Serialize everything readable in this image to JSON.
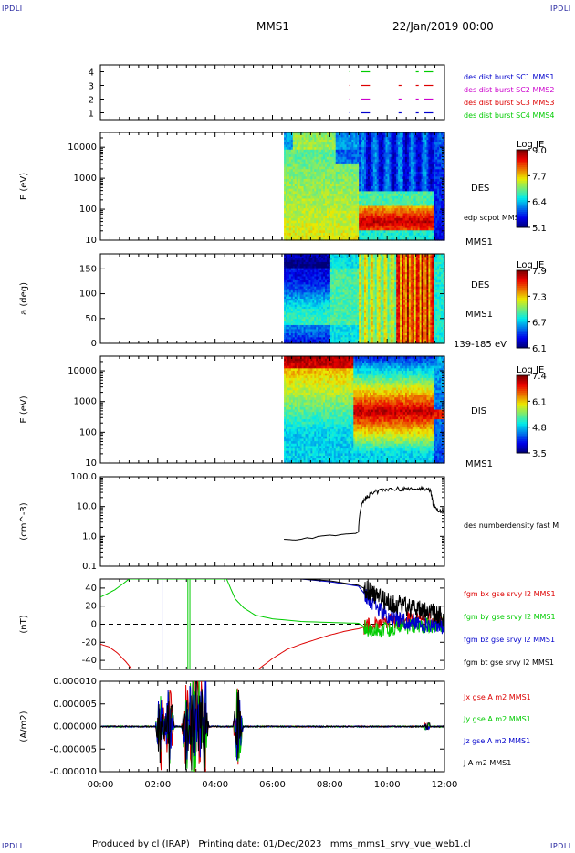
{
  "header": {
    "corner_label": "IPDLI",
    "spacecraft": "MMS1",
    "date": "22/Jan/2019 00:00"
  },
  "footer": {
    "text": "Produced by cl (IRAP)   Printing date: 01/Dec/2023   mms_mms1_srvy_vue_web1.cl"
  },
  "x_axis": {
    "ticks": [
      "00:00",
      "02:00",
      "04:00",
      "06:00",
      "08:00",
      "10:00",
      "12:00"
    ],
    "range_hours": [
      0,
      12
    ]
  },
  "colors": {
    "sc1": "#0000cc",
    "sc2": "#cc00cc",
    "sc3": "#dd0000",
    "sc4": "#00cc00",
    "bx": "#dd0000",
    "by": "#00cc00",
    "bz": "#0000cc",
    "bt": "#000000"
  },
  "chart_data": [
    {
      "id": "availability",
      "type": "scatter",
      "ylabel": "",
      "yticks": [
        "1",
        "2",
        "3",
        "4"
      ],
      "ylim": [
        0.5,
        4.5
      ],
      "legend_placement": "right",
      "series": [
        {
          "name": "des dist burst SC1 MMS1",
          "color": "#0000cc",
          "y": 1,
          "segments": [
            [
              9.1,
              9.4
            ],
            [
              10.4,
              10.5
            ],
            [
              11.0,
              11.1
            ],
            [
              11.3,
              11.6
            ]
          ]
        },
        {
          "name": "des dist burst SC2 MMS2",
          "color": "#cc00cc",
          "y": 2,
          "segments": [
            [
              9.1,
              9.4
            ],
            [
              10.4,
              10.5
            ],
            [
              11.0,
              11.1
            ],
            [
              11.3,
              11.6
            ]
          ]
        },
        {
          "name": "des dist burst SC3 MMS3",
          "color": "#dd0000",
          "y": 3,
          "segments": [
            [
              9.1,
              9.4
            ],
            [
              10.4,
              10.5
            ],
            [
              11.0,
              11.1
            ],
            [
              11.3,
              11.6
            ]
          ]
        },
        {
          "name": "des dist burst SC4 MMS4",
          "color": "#00cc00",
          "y": 4,
          "segments": [
            [
              9.1,
              9.4
            ],
            [
              11.0,
              11.1
            ],
            [
              11.3,
              11.6
            ]
          ]
        }
      ]
    },
    {
      "id": "des-energy",
      "type": "heatmap",
      "ylabel": "E (eV)",
      "yscale": "log",
      "ylim": [
        10,
        30000
      ],
      "yticks": [
        "10",
        "100",
        "1000",
        "10000"
      ],
      "labels": [
        "DES",
        "edp scpot MMS1",
        "MMS1"
      ],
      "colorbar": {
        "title": "Log JE",
        "ticks": [
          "5.1",
          "6.4",
          "7.7",
          "9.0"
        ],
        "range": [
          5.1,
          9.0
        ]
      },
      "data_start_hour": 6.4
    },
    {
      "id": "des-pitch",
      "type": "heatmap",
      "ylabel": "a (deg)",
      "ylim": [
        0,
        180
      ],
      "yticks": [
        "0",
        "50",
        "100",
        "150"
      ],
      "labels": [
        "DES",
        "MMS1",
        "139-185 eV"
      ],
      "colorbar": {
        "title": "Log JE",
        "ticks": [
          "6.1",
          "6.7",
          "7.3",
          "7.9"
        ],
        "range": [
          6.1,
          7.9
        ]
      },
      "data_start_hour": 6.4
    },
    {
      "id": "dis-energy",
      "type": "heatmap",
      "ylabel": "E (eV)",
      "yscale": "log",
      "ylim": [
        10,
        30000
      ],
      "yticks": [
        "10",
        "100",
        "1000",
        "10000"
      ],
      "labels": [
        "DIS",
        "MMS1"
      ],
      "colorbar": {
        "title": "Log JE",
        "ticks": [
          "3.5",
          "4.8",
          "6.1",
          "7.4"
        ],
        "range": [
          3.5,
          7.4
        ]
      },
      "data_start_hour": 6.4
    },
    {
      "id": "density",
      "type": "line",
      "ylabel": "(cm^-3)",
      "yscale": "log",
      "ylim": [
        0.1,
        100
      ],
      "yticks": [
        "0.1",
        "1.0",
        "10.0",
        "100.0"
      ],
      "series": [
        {
          "name": "des numberdensity fast M",
          "color": "#000000",
          "x": [
            6.4,
            6.8,
            7.0,
            7.2,
            7.4,
            7.6,
            7.8,
            8.0,
            8.2,
            8.4,
            8.6,
            8.9,
            9.0,
            9.1,
            9.3,
            9.6,
            10.0,
            10.4,
            10.8,
            11.2,
            11.5,
            11.6,
            11.8,
            12.0
          ],
          "y": [
            0.8,
            0.75,
            0.8,
            0.9,
            0.85,
            1.0,
            1.05,
            1.1,
            1.05,
            1.15,
            1.2,
            1.25,
            1.4,
            10.0,
            22,
            32,
            38,
            40,
            37,
            42,
            35,
            12,
            7,
            8
          ]
        }
      ]
    },
    {
      "id": "bfield",
      "type": "line",
      "ylabel": "(nT)",
      "ylim": [
        -50,
        50
      ],
      "yticks": [
        "-40",
        "-20",
        "0",
        "20",
        "40"
      ],
      "series": [
        {
          "name": "fgm bx gse srvy l2 MMS1",
          "color": "#dd0000",
          "x": [
            0,
            0.3,
            0.6,
            0.9,
            1.1,
            5.5,
            6.0,
            6.5,
            7.0,
            7.5,
            8.0,
            8.5,
            9.0,
            9.5,
            10.0,
            10.5,
            11.0,
            11.5,
            12.0
          ],
          "y": [
            -22,
            -25,
            -32,
            -42,
            -50,
            -50,
            -38,
            -28,
            -22,
            -17,
            -12,
            -8,
            -5,
            0,
            3,
            5,
            6,
            4,
            2
          ]
        },
        {
          "name": "fgm by gse srvy l2 MMS1",
          "color": "#00cc00",
          "x": [
            0,
            0.2,
            0.5,
            0.8,
            1.0,
            4.4,
            4.7,
            5.0,
            5.4,
            6.0,
            7.0,
            8.0,
            9.0,
            9.5,
            10.0,
            10.5,
            11.0,
            11.5,
            12.0
          ],
          "y": [
            30,
            33,
            38,
            45,
            50,
            50,
            28,
            18,
            10,
            6,
            3,
            2,
            1,
            -8,
            -5,
            -3,
            -2,
            -1,
            0
          ]
        },
        {
          "name": "fgm bz gse srvy l2 MMS1",
          "color": "#0000cc",
          "x": [
            7.0,
            8.0,
            9.0,
            9.3,
            9.6,
            10.0,
            10.4,
            10.8,
            11.2,
            11.6,
            12.0
          ],
          "y": [
            50,
            47,
            42,
            30,
            20,
            10,
            5,
            2,
            0,
            -3,
            -2
          ]
        },
        {
          "name": "fgm bt gse srvy l2 MMS1",
          "color": "#000000",
          "x": [
            7.0,
            8.0,
            9.0,
            9.3,
            9.6,
            10.0,
            10.4,
            10.8,
            11.2,
            11.6,
            12.0
          ],
          "y": [
            50,
            48,
            43,
            38,
            30,
            25,
            22,
            18,
            15,
            12,
            8
          ]
        }
      ]
    },
    {
      "id": "current",
      "type": "line",
      "ylabel": "(A/m2)",
      "ylim": [
        -0.0001,
        0.0001
      ],
      "yticks": [
        "-0.000010",
        "-0.000005",
        "0.000000",
        "0.000005",
        "0.000010"
      ],
      "series": [
        {
          "name": "Jx gse A m2 MMS1",
          "color": "#dd0000"
        },
        {
          "name": "Jy gse A m2 MMS1",
          "color": "#00cc00"
        },
        {
          "name": "Jz gse A m2 MMS1",
          "color": "#0000cc"
        },
        {
          "name": "J A m2 MMS1",
          "color": "#000000"
        }
      ],
      "spikes_hours": [
        2.1,
        2.4,
        3.0,
        3.3,
        3.6,
        4.8
      ]
    }
  ]
}
